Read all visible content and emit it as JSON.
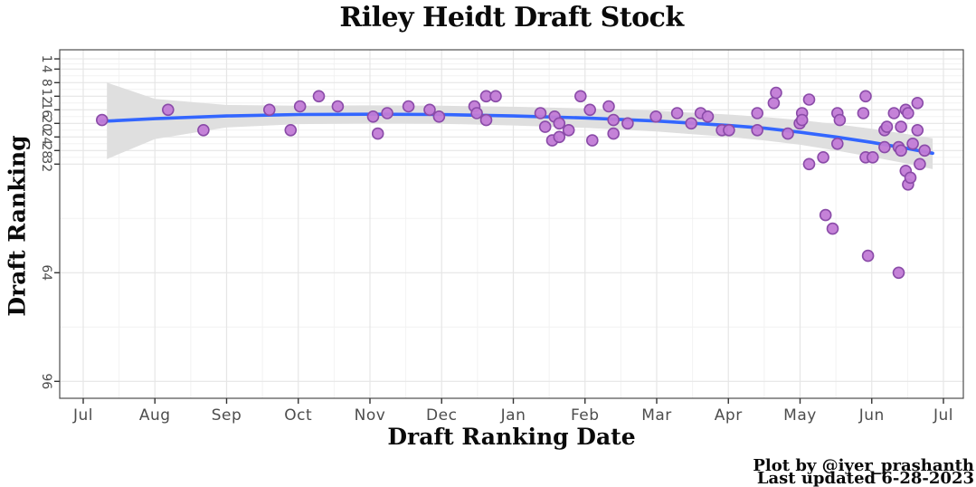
{
  "title": "Riley Heidt Draft Stock",
  "axes": {
    "x_title": "Draft Ranking Date",
    "y_title": "Draft Ranking",
    "x_tick_labels": [
      "Jul",
      "Aug",
      "Sep",
      "Oct",
      "Nov",
      "Dec",
      "Jan",
      "Feb",
      "Mar",
      "Apr",
      "May",
      "Jun",
      "Jul"
    ],
    "y_tick_labels": [
      "1",
      "4",
      "8",
      "12",
      "16",
      "20",
      "24",
      "28",
      "32",
      "64",
      "96"
    ]
  },
  "caption": {
    "line1": "Plot by @iyer_prashanth",
    "line2": "Last updated 6-28-2023"
  },
  "colors": {
    "point_fill": "#c27bd6",
    "point_stroke": "#8a4ba8",
    "smooth_line": "#3366FF",
    "ribbon": "#dfdfdf",
    "grid_major": "#e6e6e6",
    "grid_minor": "#f2f2f2",
    "panel_border": "#4d4d4d",
    "tick_mark": "#333333",
    "tick_text": "#4d4d4d"
  },
  "chart_data": {
    "type": "scatter",
    "title": "Riley Heidt Draft Stock",
    "xlabel": "Draft Ranking Date",
    "ylabel": "Draft Ranking",
    "x_range": [
      "2022-07-01",
      "2023-07-01"
    ],
    "y_breaks": [
      1,
      4,
      8,
      12,
      16,
      20,
      24,
      28,
      32,
      64,
      96
    ],
    "y_minor_breaks": [
      2.5,
      6,
      10,
      14,
      18,
      22,
      26,
      30,
      48,
      80
    ],
    "y_reversed": true,
    "grid": true,
    "legend": "none",
    "points": [
      {
        "date": "2022-07-09",
        "rank": 19
      },
      {
        "date": "2022-08-06",
        "rank": 16
      },
      {
        "date": "2022-08-21",
        "rank": 22
      },
      {
        "date": "2022-09-18",
        "rank": 16
      },
      {
        "date": "2022-09-27",
        "rank": 22
      },
      {
        "date": "2022-10-01",
        "rank": 15
      },
      {
        "date": "2022-10-09",
        "rank": 12
      },
      {
        "date": "2022-10-17",
        "rank": 15
      },
      {
        "date": "2022-11-01",
        "rank": 18
      },
      {
        "date": "2022-11-03",
        "rank": 23
      },
      {
        "date": "2022-11-07",
        "rank": 17
      },
      {
        "date": "2022-11-16",
        "rank": 15
      },
      {
        "date": "2022-11-25",
        "rank": 16
      },
      {
        "date": "2022-11-29",
        "rank": 18
      },
      {
        "date": "2022-12-14",
        "rank": 15
      },
      {
        "date": "2022-12-15",
        "rank": 17
      },
      {
        "date": "2022-12-19",
        "rank": 12
      },
      {
        "date": "2022-12-19",
        "rank": 19
      },
      {
        "date": "2022-12-23",
        "rank": 12
      },
      {
        "date": "2023-01-11",
        "rank": 17
      },
      {
        "date": "2023-01-13",
        "rank": 21
      },
      {
        "date": "2023-01-16",
        "rank": 25
      },
      {
        "date": "2023-01-17",
        "rank": 18
      },
      {
        "date": "2023-01-19",
        "rank": 24
      },
      {
        "date": "2023-01-19",
        "rank": 20
      },
      {
        "date": "2023-01-23",
        "rank": 22
      },
      {
        "date": "2023-01-28",
        "rank": 12
      },
      {
        "date": "2023-02-01",
        "rank": 16
      },
      {
        "date": "2023-02-02",
        "rank": 25
      },
      {
        "date": "2023-02-09",
        "rank": 15
      },
      {
        "date": "2023-02-11",
        "rank": 23
      },
      {
        "date": "2023-02-11",
        "rank": 19
      },
      {
        "date": "2023-02-17",
        "rank": 20
      },
      {
        "date": "2023-03-01",
        "rank": 18
      },
      {
        "date": "2023-03-10",
        "rank": 17
      },
      {
        "date": "2023-03-16",
        "rank": 20
      },
      {
        "date": "2023-03-20",
        "rank": 17
      },
      {
        "date": "2023-03-23",
        "rank": 18
      },
      {
        "date": "2023-03-29",
        "rank": 22
      },
      {
        "date": "2023-04-01",
        "rank": 22
      },
      {
        "date": "2023-04-13",
        "rank": 17
      },
      {
        "date": "2023-04-13",
        "rank": 22
      },
      {
        "date": "2023-04-20",
        "rank": 14
      },
      {
        "date": "2023-04-21",
        "rank": 11
      },
      {
        "date": "2023-04-26",
        "rank": 23
      },
      {
        "date": "2023-05-01",
        "rank": 20
      },
      {
        "date": "2023-05-02",
        "rank": 17
      },
      {
        "date": "2023-05-02",
        "rank": 19
      },
      {
        "date": "2023-05-05",
        "rank": 13
      },
      {
        "date": "2023-05-05",
        "rank": 32
      },
      {
        "date": "2023-05-11",
        "rank": 30
      },
      {
        "date": "2023-05-12",
        "rank": 47
      },
      {
        "date": "2023-05-15",
        "rank": 51
      },
      {
        "date": "2023-05-17",
        "rank": 26
      },
      {
        "date": "2023-05-17",
        "rank": 17
      },
      {
        "date": "2023-05-18",
        "rank": 19
      },
      {
        "date": "2023-05-28",
        "rank": 17
      },
      {
        "date": "2023-05-29",
        "rank": 30
      },
      {
        "date": "2023-05-29",
        "rank": 12
      },
      {
        "date": "2023-05-30",
        "rank": 59
      },
      {
        "date": "2023-06-01",
        "rank": 30
      },
      {
        "date": "2023-06-06",
        "rank": 22
      },
      {
        "date": "2023-06-06",
        "rank": 27
      },
      {
        "date": "2023-06-07",
        "rank": 21
      },
      {
        "date": "2023-06-10",
        "rank": 17
      },
      {
        "date": "2023-06-12",
        "rank": 27
      },
      {
        "date": "2023-06-12",
        "rank": 64
      },
      {
        "date": "2023-06-13",
        "rank": 28
      },
      {
        "date": "2023-06-13",
        "rank": 21
      },
      {
        "date": "2023-06-15",
        "rank": 16
      },
      {
        "date": "2023-06-15",
        "rank": 34
      },
      {
        "date": "2023-06-16",
        "rank": 38
      },
      {
        "date": "2023-06-16",
        "rank": 17
      },
      {
        "date": "2023-06-17",
        "rank": 36
      },
      {
        "date": "2023-06-18",
        "rank": 26
      },
      {
        "date": "2023-06-20",
        "rank": 14
      },
      {
        "date": "2023-06-20",
        "rank": 22
      },
      {
        "date": "2023-06-21",
        "rank": 32
      },
      {
        "date": "2023-06-23",
        "rank": 28
      }
    ],
    "smooth_line": [
      {
        "m": 0.25,
        "rank": 19.4
      },
      {
        "m": 1.0,
        "rank": 18.6
      },
      {
        "m": 2.0,
        "rank": 17.8
      },
      {
        "m": 3.0,
        "rank": 17.4
      },
      {
        "m": 4.0,
        "rank": 17.3
      },
      {
        "m": 5.0,
        "rank": 17.4
      },
      {
        "m": 6.0,
        "rank": 17.8
      },
      {
        "m": 7.0,
        "rank": 18.4
      },
      {
        "m": 8.0,
        "rank": 19.3
      },
      {
        "m": 9.0,
        "rank": 20.6
      },
      {
        "m": 9.5,
        "rank": 21.4
      },
      {
        "m": 10.0,
        "rank": 22.6
      },
      {
        "m": 10.5,
        "rank": 24.0
      },
      {
        "m": 11.0,
        "rank": 25.6
      },
      {
        "m": 11.5,
        "rank": 27.4
      },
      {
        "m": 11.85,
        "rank": 28.8
      }
    ],
    "ribbon": [
      {
        "m": 0.33,
        "lo": 8.0,
        "hi": 30.5
      },
      {
        "m": 1.0,
        "lo": 12.8,
        "hi": 24.6
      },
      {
        "m": 2.0,
        "lo": 14.6,
        "hi": 21.2
      },
      {
        "m": 3.0,
        "lo": 14.8,
        "hi": 20.2
      },
      {
        "m": 4.0,
        "lo": 14.7,
        "hi": 20.0
      },
      {
        "m": 5.0,
        "lo": 14.8,
        "hi": 20.1
      },
      {
        "m": 6.0,
        "lo": 15.1,
        "hi": 20.6
      },
      {
        "m": 7.0,
        "lo": 15.6,
        "hi": 21.3
      },
      {
        "m": 8.0,
        "lo": 16.3,
        "hi": 22.4
      },
      {
        "m": 9.0,
        "lo": 17.4,
        "hi": 24.0
      },
      {
        "m": 9.5,
        "lo": 18.1,
        "hi": 25.0
      },
      {
        "m": 10.0,
        "lo": 19.0,
        "hi": 26.3
      },
      {
        "m": 10.5,
        "lo": 20.2,
        "hi": 28.0
      },
      {
        "m": 11.0,
        "lo": 21.6,
        "hi": 29.9
      },
      {
        "m": 11.5,
        "lo": 23.2,
        "hi": 31.9
      },
      {
        "m": 11.85,
        "lo": 24.4,
        "hi": 33.5
      }
    ]
  }
}
